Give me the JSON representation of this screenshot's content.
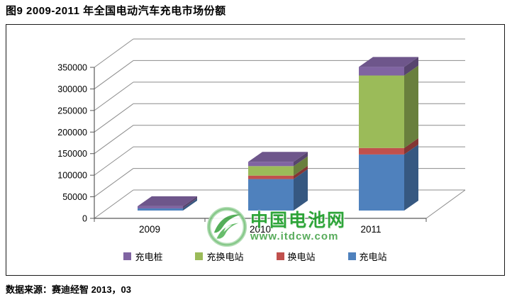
{
  "page": {
    "title": "图9 2009-2011 年全国电动汽车充电市场份额",
    "source_label": "数据来源：",
    "source_value": "赛迪经智  2013，03"
  },
  "watermark": {
    "name": "中国电池网",
    "url": "www.itdcw.com",
    "logo": "green-circle-swoosh-icon",
    "accent_color": "#2f9e33"
  },
  "chart_data": {
    "type": "bar",
    "subtype": "3d-stacked-column",
    "title": "",
    "xlabel": "",
    "ylabel": "",
    "categories": [
      "2009",
      "2010",
      "2011"
    ],
    "series": [
      {
        "name": "充电站",
        "color": "#4F81BD",
        "values": [
          5000,
          73000,
          130000
        ]
      },
      {
        "name": "换电站",
        "color": "#C0504D",
        "values": [
          0,
          8000,
          15000
        ]
      },
      {
        "name": "充换电站",
        "color": "#9BBB59",
        "values": [
          0,
          22000,
          168000
        ]
      },
      {
        "name": "充电桩",
        "color": "#8064A2",
        "values": [
          5000,
          10000,
          20000
        ]
      }
    ],
    "stack_order_bottom_to_top": [
      "充电站",
      "换电站",
      "充换电站",
      "充电桩"
    ],
    "legend_order": [
      "充电桩",
      "充换电站",
      "换电站",
      "充电站"
    ],
    "legend_position": "bottom",
    "y_ticks": [
      0,
      50000,
      100000,
      150000,
      200000,
      250000,
      300000,
      350000
    ],
    "ylim": [
      0,
      350000
    ],
    "grid": true,
    "grid_color": "#8c8c8c",
    "axis_color": "#595959",
    "tick_label_color": "#000000"
  }
}
